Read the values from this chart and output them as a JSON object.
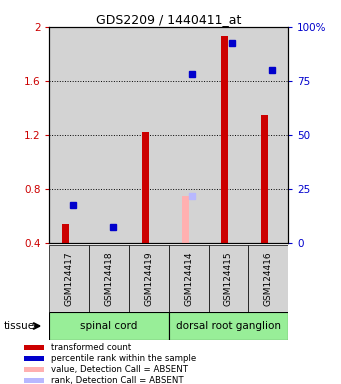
{
  "title": "GDS2209 / 1440411_at",
  "samples": [
    "GSM124417",
    "GSM124418",
    "GSM124419",
    "GSM124414",
    "GSM124415",
    "GSM124416"
  ],
  "red_values": [
    0.54,
    0.39,
    1.22,
    null,
    1.93,
    1.35
  ],
  "blue_values": [
    0.68,
    0.52,
    null,
    1.65,
    1.88,
    1.68
  ],
  "pink_values": [
    null,
    null,
    null,
    0.75,
    null,
    null
  ],
  "lightblue_values": [
    null,
    null,
    null,
    0.75,
    null,
    null
  ],
  "ylim_left": [
    0.4,
    2.0
  ],
  "ylim_right": [
    0,
    100
  ],
  "yticks_left": [
    0.4,
    0.8,
    1.2,
    1.6,
    2.0
  ],
  "yticks_right": [
    0,
    25,
    50,
    75,
    100
  ],
  "ytick_labels_left": [
    "0.4",
    "0.8",
    "1.2",
    "1.6",
    "2"
  ],
  "ytick_labels_right": [
    "0",
    "25",
    "50",
    "75",
    "100%"
  ],
  "bar_width": 0.18,
  "red_color": "#cc0000",
  "blue_color": "#0000cc",
  "pink_color": "#ffb0b0",
  "lightblue_color": "#b8b8ff",
  "gray_bg": "#d3d3d3",
  "green_tissue": "#98ee98",
  "legend_items": [
    {
      "color": "#cc0000",
      "label": "transformed count"
    },
    {
      "color": "#0000cc",
      "label": "percentile rank within the sample"
    },
    {
      "color": "#ffb0b0",
      "label": "value, Detection Call = ABSENT"
    },
    {
      "color": "#b8b8ff",
      "label": "rank, Detection Call = ABSENT"
    }
  ],
  "tissue_groups": [
    {
      "label": "spinal cord",
      "start": 0,
      "end": 2
    },
    {
      "label": "dorsal root ganglion",
      "start": 3,
      "end": 5
    }
  ]
}
